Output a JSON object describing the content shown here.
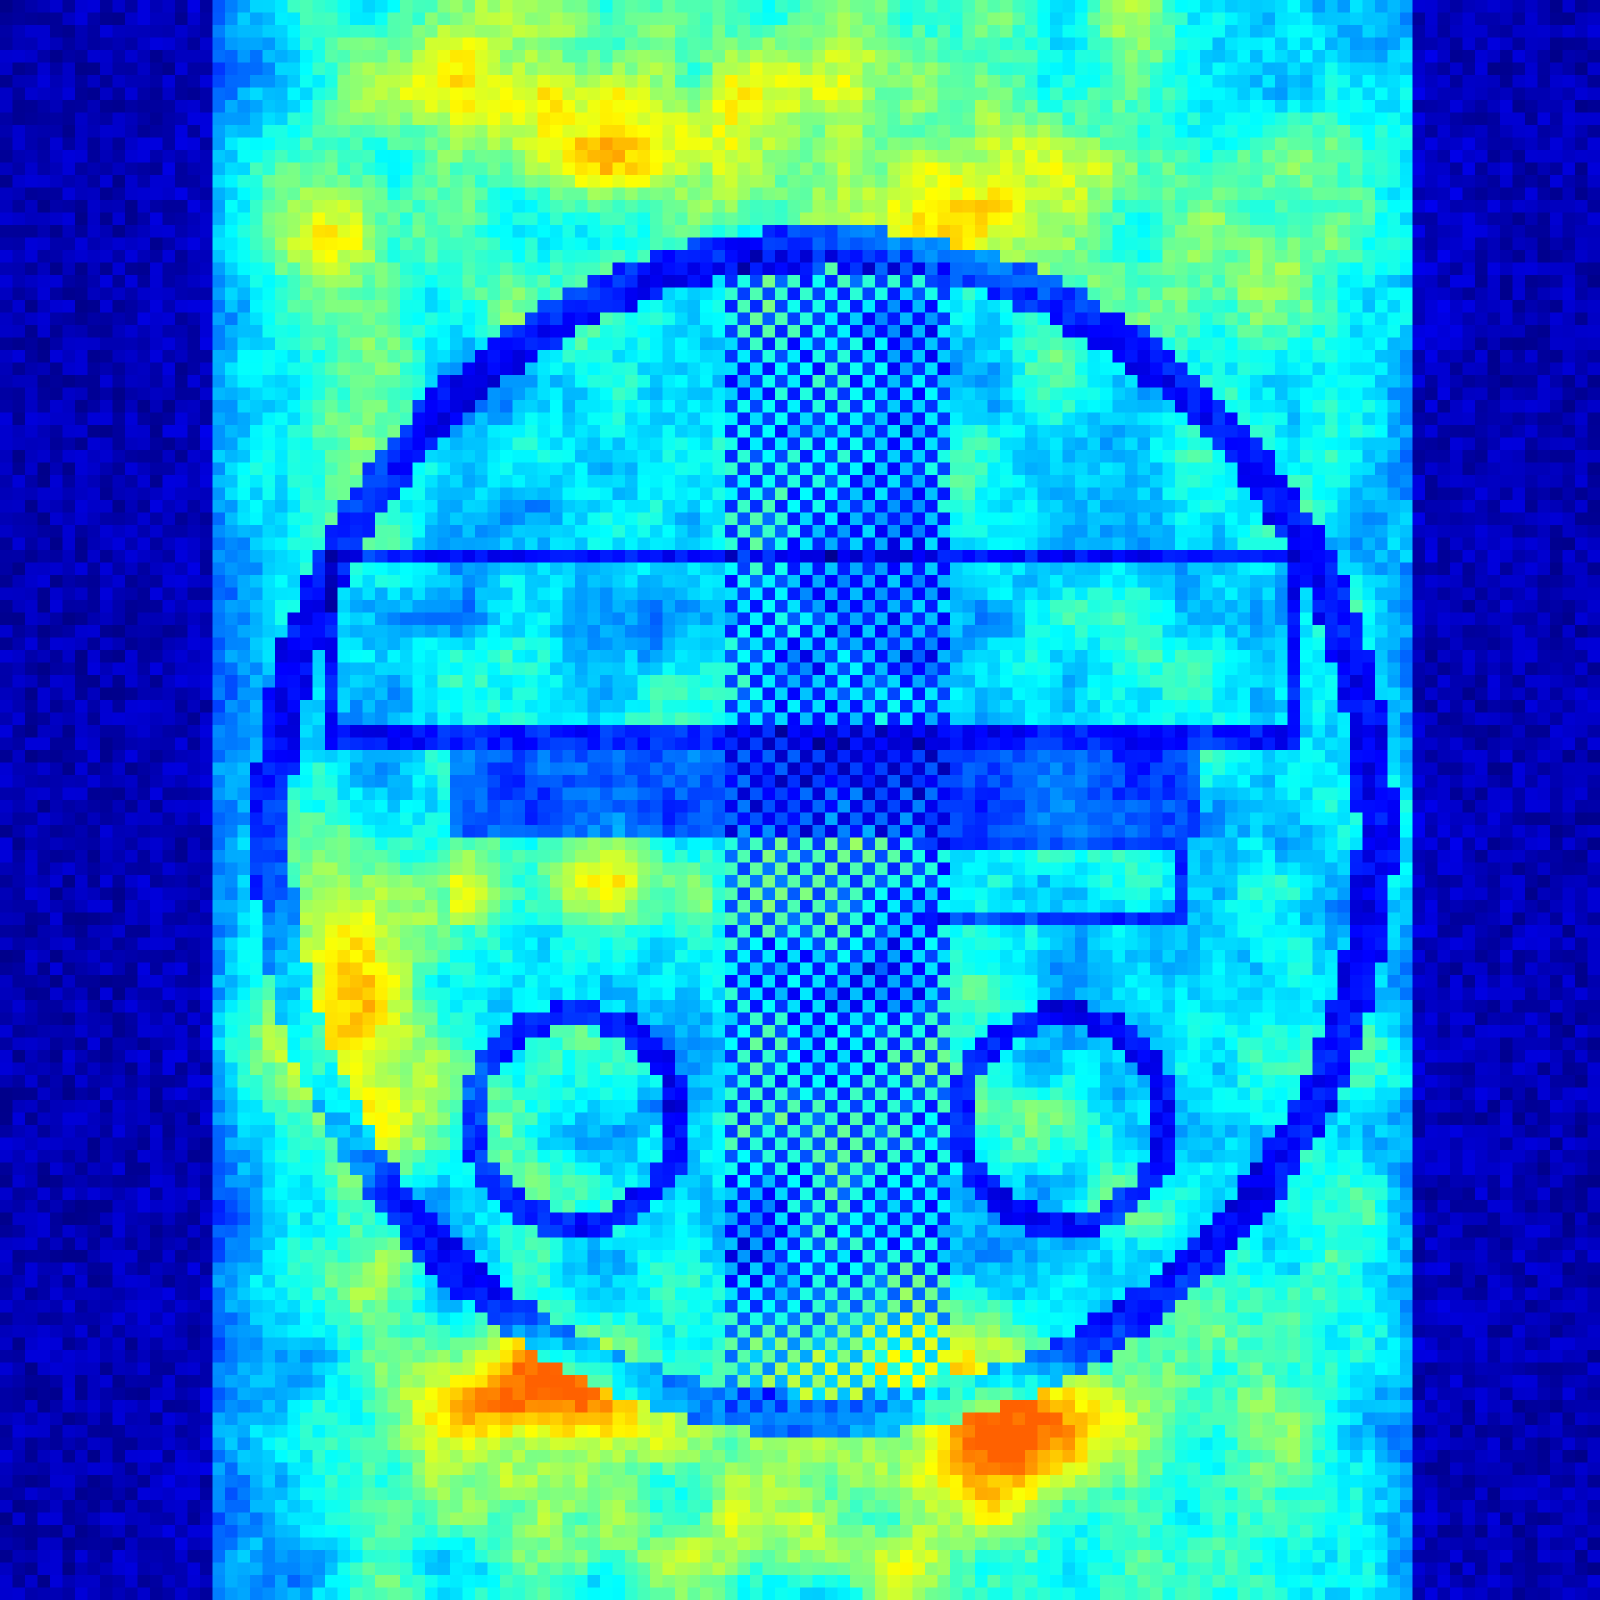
{
  "image": {
    "kind": "false-color heatmap / saliency-like visualization",
    "colormap": "jet",
    "background_color": "#00008f",
    "dominant_colors": [
      "#00008f",
      "#0000c8",
      "#0030ff",
      "#0080ff",
      "#00d0ff",
      "#00ffff",
      "#80ff80"
    ],
    "value_range": [
      0,
      1
    ],
    "grid_cells": 128
  }
}
